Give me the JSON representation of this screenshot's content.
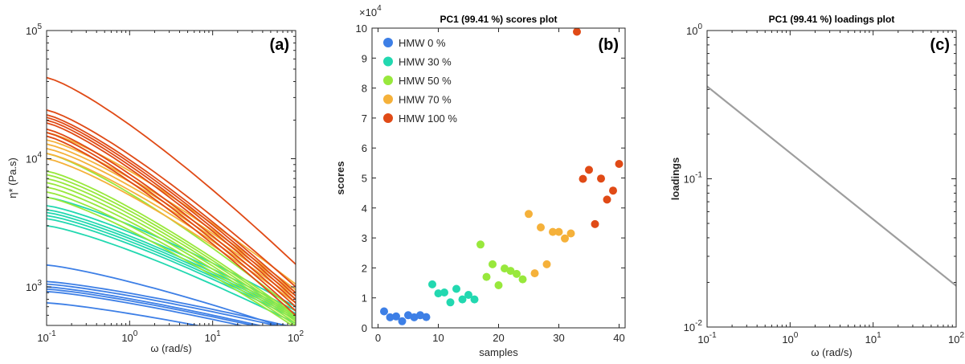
{
  "chart_data": [
    {
      "id": "a",
      "type": "line",
      "panel_label": "(a)",
      "title": "",
      "xlabel": "ω (rad/s)",
      "ylabel": "η* (Pa.s)",
      "xscale": "log",
      "yscale": "log",
      "xlim": [
        0.1,
        100
      ],
      "ylim": [
        500,
        100000
      ],
      "xticks": [
        0.1,
        1,
        10,
        100
      ],
      "xtick_labels": [
        {
          "base": "10",
          "exp": "-1"
        },
        {
          "base": "10",
          "exp": "0"
        },
        {
          "base": "10",
          "exp": "1"
        },
        {
          "base": "10",
          "exp": "2"
        }
      ],
      "yticks": [
        1000,
        10000,
        100000
      ],
      "ytick_labels": [
        {
          "base": "10",
          "exp": "3"
        },
        {
          "base": "10",
          "exp": "4"
        },
        {
          "base": "10",
          "exp": "5"
        }
      ],
      "groups": [
        {
          "color": "#3d7fe6",
          "curves": [
            {
              "y0": 1480,
              "y100": 450
            },
            {
              "y0": 1100,
              "y100": 480
            },
            {
              "y0": 1050,
              "y100": 460
            },
            {
              "y0": 1000,
              "y100": 430
            },
            {
              "y0": 960,
              "y100": 420
            },
            {
              "y0": 920,
              "y100": 400
            },
            {
              "y0": 750,
              "y100": 350
            }
          ]
        },
        {
          "color": "#22d8b0",
          "curves": [
            {
              "y0": 5000,
              "y100": 700
            },
            {
              "y0": 4300,
              "y100": 650
            },
            {
              "y0": 4000,
              "y100": 620
            },
            {
              "y0": 3800,
              "y100": 600
            },
            {
              "y0": 3600,
              "y100": 580
            },
            {
              "y0": 3400,
              "y100": 560
            },
            {
              "y0": 3000,
              "y100": 520
            }
          ]
        },
        {
          "color": "#98e83c",
          "curves": [
            {
              "y0": 11000,
              "y100": 650
            },
            {
              "y0": 8000,
              "y100": 600
            },
            {
              "y0": 7500,
              "y100": 580
            },
            {
              "y0": 7000,
              "y100": 560
            },
            {
              "y0": 6500,
              "y100": 540
            },
            {
              "y0": 6000,
              "y100": 520
            },
            {
              "y0": 5500,
              "y100": 500
            },
            {
              "y0": 5000,
              "y100": 480
            }
          ]
        },
        {
          "color": "#f5b13a",
          "curves": [
            {
              "y0": 16000,
              "y100": 1050
            },
            {
              "y0": 14000,
              "y100": 950
            },
            {
              "y0": 13000,
              "y100": 900
            },
            {
              "y0": 12000,
              "y100": 850
            },
            {
              "y0": 11000,
              "y100": 800
            },
            {
              "y0": 10000,
              "y100": 750
            }
          ]
        },
        {
          "color": "#e04a16",
          "curves": [
            {
              "y0": 43000,
              "y100": 1500
            },
            {
              "y0": 24000,
              "y100": 1000
            },
            {
              "y0": 22000,
              "y100": 900
            },
            {
              "y0": 21000,
              "y100": 850
            },
            {
              "y0": 20000,
              "y100": 800
            },
            {
              "y0": 19000,
              "y100": 750
            },
            {
              "y0": 17000,
              "y100": 700
            },
            {
              "y0": 16000,
              "y100": 650
            },
            {
              "y0": 15000,
              "y100": 600
            }
          ]
        }
      ]
    },
    {
      "id": "b",
      "type": "scatter",
      "panel_label": "(b)",
      "title": "PC1 (99.41 %) scores plot",
      "xlabel": "samples",
      "ylabel": "scores",
      "y_multiplier": {
        "base": "×10",
        "exp": "4"
      },
      "xlim": [
        -1,
        41
      ],
      "ylim": [
        0,
        10
      ],
      "xticks": [
        0,
        10,
        20,
        30,
        40
      ],
      "yticks": [
        0,
        1,
        2,
        3,
        4,
        5,
        6,
        7,
        8,
        9,
        10
      ],
      "series": [
        {
          "name": "HMW 0 %",
          "color": "#3d7fe6",
          "points": [
            [
              1,
              0.55
            ],
            [
              2,
              0.35
            ],
            [
              3,
              0.38
            ],
            [
              4,
              0.22
            ],
            [
              5,
              0.42
            ],
            [
              6,
              0.35
            ],
            [
              7,
              0.42
            ],
            [
              8,
              0.36
            ]
          ]
        },
        {
          "name": "HMW 30 %",
          "color": "#22d8b0",
          "points": [
            [
              9,
              1.45
            ],
            [
              10,
              1.15
            ],
            [
              11,
              1.18
            ],
            [
              12,
              0.85
            ],
            [
              13,
              1.3
            ],
            [
              14,
              0.95
            ],
            [
              15,
              1.1
            ],
            [
              16,
              0.95
            ]
          ]
        },
        {
          "name": "HMW 50 %",
          "color": "#98e83c",
          "points": [
            [
              17,
              2.78
            ],
            [
              18,
              1.7
            ],
            [
              19,
              2.12
            ],
            [
              20,
              1.42
            ],
            [
              21,
              1.98
            ],
            [
              22,
              1.9
            ],
            [
              23,
              1.8
            ],
            [
              24,
              1.62
            ]
          ]
        },
        {
          "name": "HMW 70 %",
          "color": "#f5b13a",
          "points": [
            [
              25,
              3.8
            ],
            [
              26,
              1.82
            ],
            [
              27,
              3.35
            ],
            [
              28,
              2.12
            ],
            [
              29,
              3.2
            ],
            [
              30,
              3.2
            ],
            [
              31,
              2.98
            ],
            [
              32,
              3.15
            ]
          ]
        },
        {
          "name": "HMW 100 %",
          "color": "#e04a16",
          "points": [
            [
              33,
              9.88
            ],
            [
              34,
              4.97
            ],
            [
              35,
              5.27
            ],
            [
              36,
              3.46
            ],
            [
              37,
              4.98
            ],
            [
              38,
              4.28
            ],
            [
              39,
              4.58
            ],
            [
              40,
              5.47
            ]
          ]
        }
      ],
      "legend_placement": "top-left"
    },
    {
      "id": "c",
      "type": "line",
      "panel_label": "(c)",
      "title": "PC1 (99.41 %) loadings plot",
      "xlabel": "ω (rad/s)",
      "ylabel": "loadings",
      "xscale": "log",
      "yscale": "log",
      "xlim": [
        0.1,
        100
      ],
      "ylim": [
        0.01,
        1
      ],
      "xticks": [
        0.1,
        1,
        10,
        100
      ],
      "xtick_labels": [
        {
          "base": "10",
          "exp": "-1"
        },
        {
          "base": "10",
          "exp": "0"
        },
        {
          "base": "10",
          "exp": "1"
        },
        {
          "base": "10",
          "exp": "2"
        }
      ],
      "yticks": [
        0.01,
        0.1,
        1
      ],
      "ytick_labels": [
        {
          "base": "10",
          "exp": "-2"
        },
        {
          "base": "10",
          "exp": "-1"
        },
        {
          "base": "10",
          "exp": "0"
        }
      ],
      "color": "#9e9e9e",
      "series": [
        {
          "x": [
            0.1,
            100
          ],
          "y": [
            0.42,
            0.019
          ]
        }
      ]
    }
  ]
}
